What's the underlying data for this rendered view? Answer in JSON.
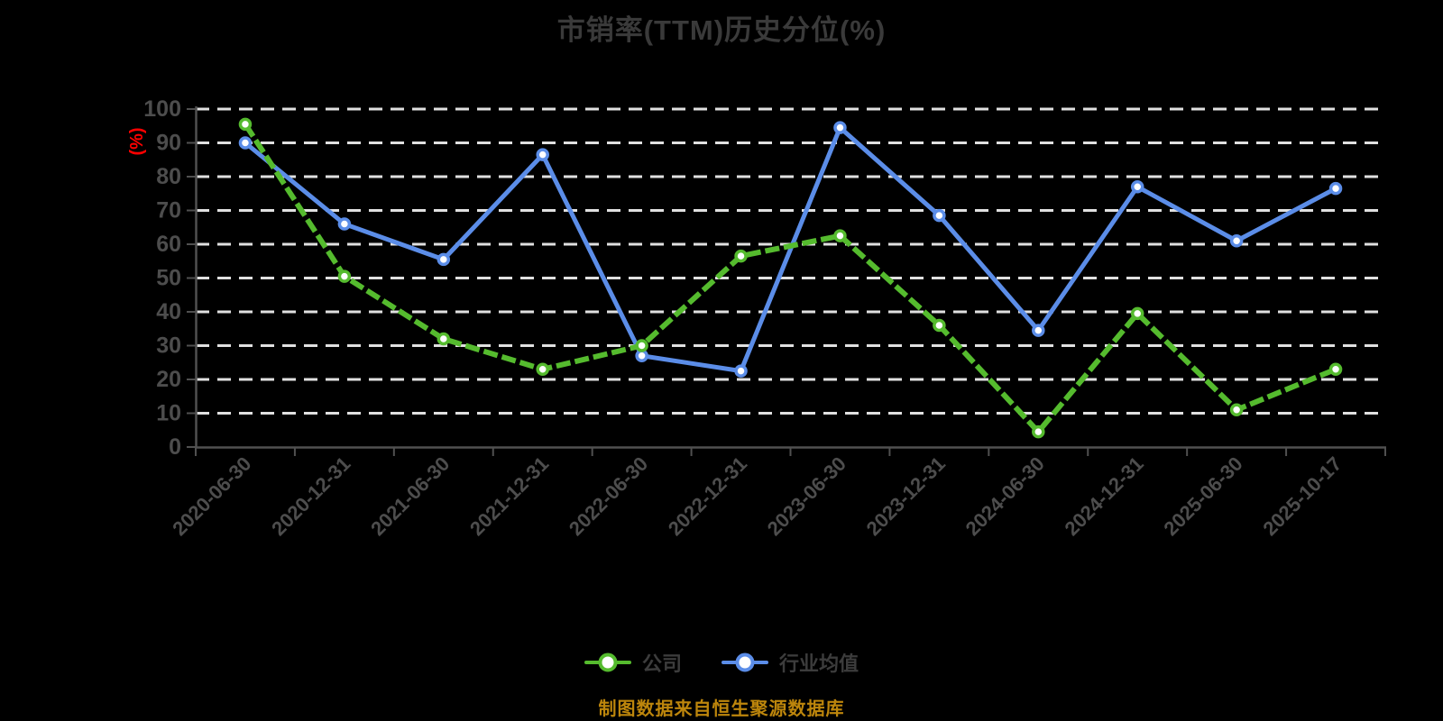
{
  "title": {
    "text": "市销率(TTM)历史分位(%)"
  },
  "y_axis": {
    "unit_label": "(%)",
    "ticks": [
      0,
      10,
      20,
      30,
      40,
      50,
      60,
      70,
      80,
      90,
      100
    ]
  },
  "legend": {
    "items": [
      {
        "label": "公司",
        "color": "#55BB2E"
      },
      {
        "label": "行业均值",
        "color": "#5B8DE8"
      }
    ]
  },
  "footer": {
    "text": "制图数据来自恒生聚源数据库"
  },
  "colors": {
    "background": "#000000",
    "grid_line": "#E0E0E0",
    "axis_line": "#505050",
    "tick_label": "#4D4D4D",
    "title_text": "#3A3A3A",
    "legend_text": "#3C3C3C",
    "unit_label": "#FF0000",
    "footer_text": "#BD860C",
    "marker_fill": "#FFFFFF"
  },
  "chart_data": {
    "type": "line",
    "title": "市销率(TTM)历史分位(%)",
    "categories": [
      "2020-06-30",
      "2020-12-31",
      "2021-06-30",
      "2021-12-31",
      "2022-06-30",
      "2022-12-31",
      "2023-06-30",
      "2023-12-31",
      "2024-06-30",
      "2024-12-31",
      "2025-06-30",
      "2025-10-17"
    ],
    "series": [
      {
        "name": "公司",
        "color": "#55BB2E",
        "line_style": "dashed",
        "values": [
          95.5,
          50.5,
          32,
          23,
          30,
          56.5,
          62.5,
          36,
          4.5,
          39.5,
          11,
          23
        ]
      },
      {
        "name": "行业均值",
        "color": "#5B8DE8",
        "line_style": "solid",
        "values": [
          90,
          66,
          55.5,
          86.5,
          27,
          22.5,
          94.5,
          68.5,
          34.5,
          77,
          61,
          76.5
        ]
      }
    ],
    "xlabel": "",
    "ylabel": "(%)",
    "ylim": [
      0,
      100
    ],
    "y_tick_step": 10,
    "grid": "horizontal-dashed",
    "legend_position": "bottom",
    "x_label_rotation": -45
  }
}
